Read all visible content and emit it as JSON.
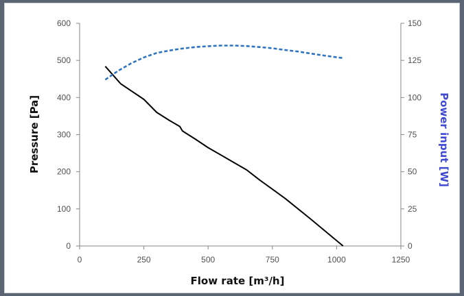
{
  "chart_data": {
    "type": "line",
    "title": "",
    "xlabel": "Flow rate [m³/h]",
    "ylabel": "Pressure [Pa]",
    "y2label": "Power input [W]",
    "xlim": [
      0,
      1250
    ],
    "ylim": [
      0,
      600
    ],
    "y2lim": [
      0,
      150
    ],
    "x_ticks": [
      "0",
      "250",
      "500",
      "750",
      "1000",
      "1250"
    ],
    "y_ticks": [
      "0",
      "100",
      "200",
      "300",
      "400",
      "500",
      "600"
    ],
    "y2_ticks": [
      "0",
      "25",
      "50",
      "75",
      "100",
      "125",
      "150"
    ],
    "grid": false,
    "series": [
      {
        "axis": "left",
        "style": "solid",
        "color": "#000000",
        "x": [
          100,
          160,
          250,
          300,
          350,
          390,
          400,
          450,
          500,
          550,
          600,
          650,
          700,
          750,
          800,
          900,
          1025
        ],
        "y": [
          484,
          437,
          395,
          360,
          338,
          322,
          310,
          288,
          265,
          245,
          225,
          205,
          178,
          153,
          128,
          72,
          0
        ]
      },
      {
        "axis": "right",
        "style": "dashed",
        "color": "#2e75c0",
        "x": [
          100,
          150,
          200,
          250,
          300,
          350,
          400,
          450,
          500,
          550,
          600,
          650,
          700,
          750,
          800,
          850,
          900,
          950,
          1000,
          1025
        ],
        "y": [
          112,
          118,
          123,
          127,
          130,
          131.7,
          133,
          134,
          134.6,
          135,
          135,
          134.7,
          134,
          133.2,
          132,
          131,
          129.6,
          128.3,
          127.1,
          126.6
        ]
      }
    ]
  }
}
